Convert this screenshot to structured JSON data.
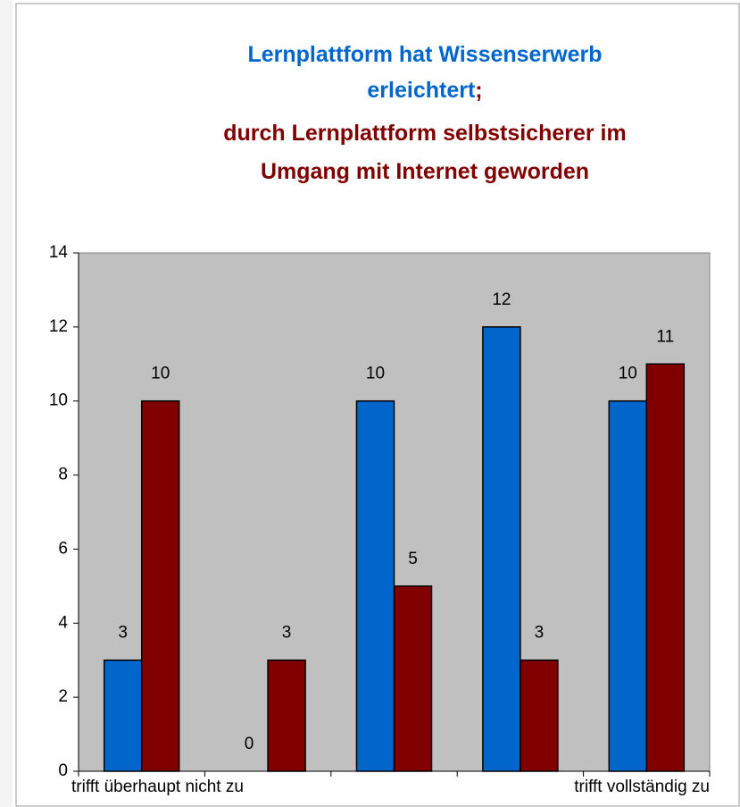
{
  "chart_data": {
    "type": "bar",
    "title_lines": [
      [
        {
          "text": "Lernplattform hat Wissenserwerb",
          "color": "#0066cc"
        }
      ],
      [
        {
          "text": "erleichtert",
          "color": "#0066cc"
        },
        {
          "text": ";",
          "color": "#800000"
        }
      ],
      [
        {
          "text": "durch  Lernplattform selbstsicherer im",
          "color": "#800000"
        }
      ],
      [
        {
          "text": "Umgang mit Internet geworden",
          "color": "#800000"
        }
      ]
    ],
    "categories": [
      "trifft überhaupt nicht zu",
      null,
      null,
      null,
      "trifft vollständig zu"
    ],
    "series": [
      {
        "color": "#0066cc",
        "values": [
          3,
          0,
          10,
          12,
          10
        ]
      },
      {
        "color": "#800000",
        "values": [
          10,
          3,
          5,
          3,
          11
        ]
      }
    ],
    "ylim": [
      0,
      14
    ],
    "yticks": [
      0,
      2,
      4,
      6,
      8,
      10,
      12,
      14
    ],
    "plot_background": "#c0c0c0"
  }
}
